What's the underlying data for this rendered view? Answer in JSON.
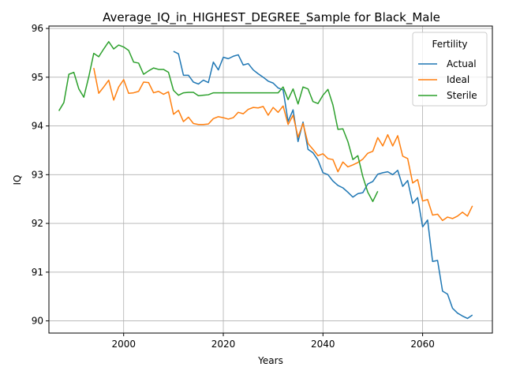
{
  "chart_data": {
    "type": "line",
    "title": "Average_IQ_in_HIGHEST_DEGREE_Sample for Black_Male",
    "xlabel": "Years",
    "ylabel": "IQ",
    "xlim": [
      1985,
      2074
    ],
    "ylim": [
      89.75,
      96.05
    ],
    "xticks": [
      2000,
      2020,
      2040,
      2060
    ],
    "yticks": [
      90,
      91,
      92,
      93,
      94,
      95,
      96
    ],
    "grid": true,
    "legend": {
      "title": "Fertility",
      "location": "upper right"
    },
    "series": [
      {
        "name": "Actual",
        "color": "#1f77b4",
        "points": [
          [
            2010,
            95.53
          ],
          [
            2011,
            95.48
          ],
          [
            2012,
            95.04
          ],
          [
            2013,
            95.04
          ],
          [
            2014,
            94.9
          ],
          [
            2015,
            94.86
          ],
          [
            2016,
            94.94
          ],
          [
            2017,
            94.89
          ],
          [
            2018,
            95.31
          ],
          [
            2019,
            95.15
          ],
          [
            2020,
            95.41
          ],
          [
            2021,
            95.38
          ],
          [
            2022,
            95.43
          ],
          [
            2023,
            95.46
          ],
          [
            2024,
            95.25
          ],
          [
            2025,
            95.28
          ],
          [
            2026,
            95.15
          ],
          [
            2027,
            95.07
          ],
          [
            2028,
            95.0
          ],
          [
            2029,
            94.92
          ],
          [
            2030,
            94.88
          ],
          [
            2031,
            94.78
          ],
          [
            2032,
            94.74
          ],
          [
            2033,
            94.09
          ],
          [
            2034,
            94.33
          ],
          [
            2035,
            93.68
          ],
          [
            2036,
            94.08
          ],
          [
            2037,
            93.52
          ],
          [
            2038,
            93.45
          ],
          [
            2039,
            93.3
          ],
          [
            2040,
            93.04
          ],
          [
            2041,
            93.0
          ],
          [
            2042,
            92.87
          ],
          [
            2043,
            92.78
          ],
          [
            2044,
            92.73
          ],
          [
            2045,
            92.64
          ],
          [
            2046,
            92.54
          ],
          [
            2047,
            92.61
          ],
          [
            2048,
            92.63
          ],
          [
            2049,
            92.81
          ],
          [
            2050,
            92.86
          ],
          [
            2051,
            93.01
          ],
          [
            2052,
            93.04
          ],
          [
            2053,
            93.06
          ],
          [
            2054,
            93.0
          ],
          [
            2055,
            93.09
          ],
          [
            2056,
            92.76
          ],
          [
            2057,
            92.88
          ],
          [
            2058,
            92.41
          ],
          [
            2059,
            92.53
          ],
          [
            2060,
            91.93
          ],
          [
            2061,
            92.07
          ],
          [
            2062,
            91.22
          ],
          [
            2063,
            91.24
          ],
          [
            2064,
            90.61
          ],
          [
            2065,
            90.55
          ],
          [
            2066,
            90.26
          ],
          [
            2067,
            90.16
          ],
          [
            2068,
            90.1
          ],
          [
            2069,
            90.05
          ],
          [
            2070,
            90.12
          ]
        ]
      },
      {
        "name": "Ideal",
        "color": "#ff7f0e",
        "points": [
          [
            1994,
            95.19
          ],
          [
            1995,
            94.67
          ],
          [
            1996,
            94.8
          ],
          [
            1997,
            94.94
          ],
          [
            1998,
            94.53
          ],
          [
            1999,
            94.8
          ],
          [
            2000,
            94.95
          ],
          [
            2001,
            94.67
          ],
          [
            2002,
            94.68
          ],
          [
            2003,
            94.71
          ],
          [
            2004,
            94.9
          ],
          [
            2005,
            94.89
          ],
          [
            2006,
            94.68
          ],
          [
            2007,
            94.71
          ],
          [
            2008,
            94.65
          ],
          [
            2009,
            94.7
          ],
          [
            2010,
            94.24
          ],
          [
            2011,
            94.32
          ],
          [
            2012,
            94.09
          ],
          [
            2013,
            94.18
          ],
          [
            2014,
            94.05
          ],
          [
            2015,
            94.03
          ],
          [
            2016,
            94.03
          ],
          [
            2017,
            94.04
          ],
          [
            2018,
            94.15
          ],
          [
            2019,
            94.19
          ],
          [
            2020,
            94.17
          ],
          [
            2021,
            94.14
          ],
          [
            2022,
            94.17
          ],
          [
            2023,
            94.28
          ],
          [
            2024,
            94.25
          ],
          [
            2025,
            94.34
          ],
          [
            2026,
            94.38
          ],
          [
            2027,
            94.37
          ],
          [
            2028,
            94.4
          ],
          [
            2029,
            94.22
          ],
          [
            2030,
            94.38
          ],
          [
            2031,
            94.28
          ],
          [
            2032,
            94.41
          ],
          [
            2033,
            94.03
          ],
          [
            2034,
            94.22
          ],
          [
            2035,
            93.77
          ],
          [
            2036,
            94.05
          ],
          [
            2037,
            93.64
          ],
          [
            2038,
            93.52
          ],
          [
            2039,
            93.39
          ],
          [
            2040,
            93.43
          ],
          [
            2041,
            93.33
          ],
          [
            2042,
            93.31
          ],
          [
            2043,
            93.06
          ],
          [
            2044,
            93.26
          ],
          [
            2045,
            93.16
          ],
          [
            2046,
            93.2
          ],
          [
            2047,
            93.25
          ],
          [
            2048,
            93.32
          ],
          [
            2049,
            93.44
          ],
          [
            2050,
            93.48
          ],
          [
            2051,
            93.76
          ],
          [
            2052,
            93.59
          ],
          [
            2053,
            93.82
          ],
          [
            2054,
            93.59
          ],
          [
            2055,
            93.8
          ],
          [
            2056,
            93.38
          ],
          [
            2057,
            93.33
          ],
          [
            2058,
            92.83
          ],
          [
            2059,
            92.9
          ],
          [
            2060,
            92.46
          ],
          [
            2061,
            92.49
          ],
          [
            2062,
            92.17
          ],
          [
            2063,
            92.19
          ],
          [
            2064,
            92.06
          ],
          [
            2065,
            92.13
          ],
          [
            2066,
            92.1
          ],
          [
            2067,
            92.15
          ],
          [
            2068,
            92.23
          ],
          [
            2069,
            92.15
          ],
          [
            2070,
            92.36
          ]
        ]
      },
      {
        "name": "Sterile",
        "color": "#2ca02c",
        "points": [
          [
            1987,
            94.31
          ],
          [
            1988,
            94.48
          ],
          [
            1989,
            95.06
          ],
          [
            1990,
            95.1
          ],
          [
            1991,
            94.76
          ],
          [
            1992,
            94.59
          ],
          [
            1993,
            95.01
          ],
          [
            1994,
            95.49
          ],
          [
            1995,
            95.42
          ],
          [
            1996,
            95.58
          ],
          [
            1997,
            95.73
          ],
          [
            1998,
            95.58
          ],
          [
            1999,
            95.66
          ],
          [
            2000,
            95.62
          ],
          [
            2001,
            95.55
          ],
          [
            2002,
            95.31
          ],
          [
            2003,
            95.29
          ],
          [
            2004,
            95.06
          ],
          [
            2005,
            95.13
          ],
          [
            2006,
            95.19
          ],
          [
            2007,
            95.16
          ],
          [
            2008,
            95.16
          ],
          [
            2009,
            95.1
          ],
          [
            2010,
            94.73
          ],
          [
            2011,
            94.63
          ],
          [
            2012,
            94.68
          ],
          [
            2013,
            94.69
          ],
          [
            2014,
            94.69
          ],
          [
            2015,
            94.62
          ],
          [
            2016,
            94.63
          ],
          [
            2017,
            94.64
          ],
          [
            2018,
            94.68
          ],
          [
            2019,
            94.68
          ],
          [
            2020,
            94.68
          ],
          [
            2021,
            94.68
          ],
          [
            2022,
            94.68
          ],
          [
            2023,
            94.68
          ],
          [
            2024,
            94.68
          ],
          [
            2025,
            94.68
          ],
          [
            2026,
            94.68
          ],
          [
            2027,
            94.68
          ],
          [
            2028,
            94.68
          ],
          [
            2029,
            94.68
          ],
          [
            2030,
            94.68
          ],
          [
            2031,
            94.68
          ],
          [
            2032,
            94.8
          ],
          [
            2033,
            94.54
          ],
          [
            2034,
            94.76
          ],
          [
            2035,
            94.45
          ],
          [
            2036,
            94.8
          ],
          [
            2037,
            94.76
          ],
          [
            2038,
            94.5
          ],
          [
            2039,
            94.46
          ],
          [
            2040,
            94.63
          ],
          [
            2041,
            94.75
          ],
          [
            2042,
            94.43
          ],
          [
            2043,
            93.93
          ],
          [
            2044,
            93.94
          ],
          [
            2045,
            93.68
          ],
          [
            2046,
            93.31
          ],
          [
            2047,
            93.39
          ],
          [
            2048,
            92.96
          ],
          [
            2049,
            92.64
          ],
          [
            2050,
            92.45
          ],
          [
            2051,
            92.66
          ]
        ]
      }
    ]
  }
}
